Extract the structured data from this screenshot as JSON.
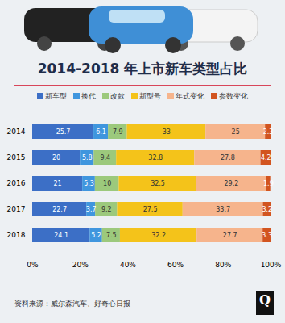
{
  "chart_data": {
    "type": "bar",
    "title": "2014-2018 年上市新车类型占比",
    "source": "资料来源：威尔森汽车、好奇心日报",
    "logo": "Q",
    "orientation": "horizontal",
    "stacked": true,
    "data_labels": true,
    "grid": false,
    "legend": "top",
    "categories": [
      "2014",
      "2015",
      "2016",
      "2017",
      "2018"
    ],
    "series": [
      {
        "name": "新车型",
        "color": "#3c6fc6",
        "values": [
          25.7,
          20,
          21,
          22.7,
          24.1
        ]
      },
      {
        "name": "换代",
        "color": "#3f96de",
        "values": [
          6.1,
          5.8,
          5.3,
          3.7,
          5.2
        ]
      },
      {
        "name": "改款",
        "color": "#9cc97c",
        "values": [
          7.9,
          9.4,
          10,
          9.2,
          7.5
        ]
      },
      {
        "name": "新型号",
        "color": "#f4c31a",
        "values": [
          33,
          32.8,
          32.5,
          27.5,
          32.2
        ]
      },
      {
        "name": "年式变化",
        "color": "#f6b48c",
        "values": [
          25,
          27.8,
          29.2,
          33.7,
          27.7
        ]
      },
      {
        "name": "参数变化",
        "color": "#d2541f",
        "values": [
          2.3,
          4.2,
          1.9,
          3.2,
          3.3
        ]
      }
    ],
    "xlim": [
      0,
      100
    ],
    "xticks": [
      {
        "value": 0,
        "label": "0%"
      },
      {
        "value": 20,
        "label": "20%"
      },
      {
        "value": 40,
        "label": "40%"
      },
      {
        "value": 60,
        "label": "60%"
      },
      {
        "value": 80,
        "label": "80%"
      },
      {
        "value": 100,
        "label": "100%"
      }
    ]
  }
}
